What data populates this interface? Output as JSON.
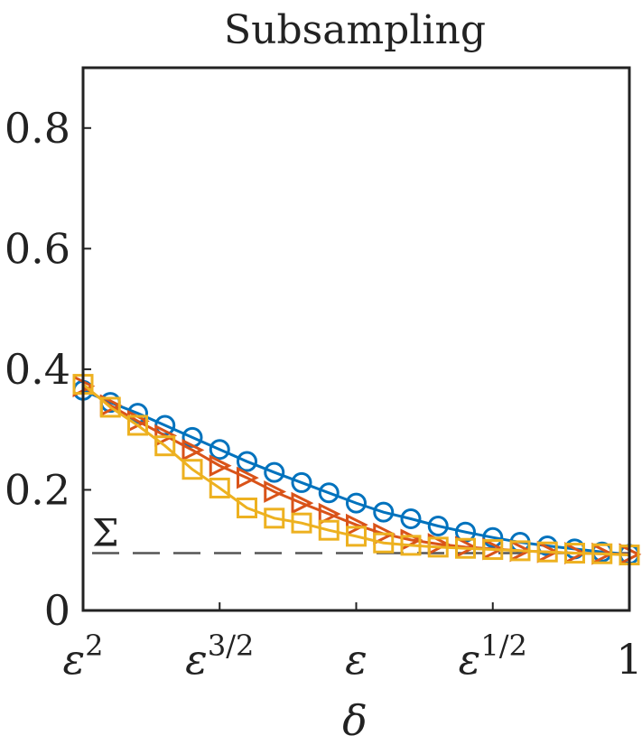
{
  "chart_data": {
    "type": "line",
    "title": "Subsampling",
    "xlabel": "δ",
    "ylabel": "",
    "ylim": [
      0,
      0.9
    ],
    "yticks": [
      0,
      0.2,
      0.4,
      0.6,
      0.8
    ],
    "ytick_labels": [
      "0",
      "0.2",
      "0.4",
      "0.6",
      "0.8"
    ],
    "xticks": [
      0,
      0.25,
      0.5,
      0.75,
      1
    ],
    "xtick_labels": [
      {
        "base": "ε",
        "sup": "2"
      },
      {
        "base": "ε",
        "sup": "3/2"
      },
      {
        "base": "ε",
        "sup": ""
      },
      {
        "base": "ε",
        "sup": "1/2"
      },
      {
        "base": "1",
        "sup": ""
      }
    ],
    "x_scale_note": "log-scaled: position t maps to δ = ε^(2·(1−t))",
    "grid": false,
    "reference_line": {
      "label": "Σ",
      "value": 0.095,
      "style": "dashed",
      "color": "#555555"
    },
    "x": [
      0,
      0.05,
      0.1,
      0.15,
      0.2,
      0.25,
      0.3,
      0.35,
      0.4,
      0.45,
      0.5,
      0.55,
      0.6,
      0.65,
      0.7,
      0.75,
      0.8,
      0.85,
      0.9,
      0.95,
      1.0
    ],
    "series": [
      {
        "color": "#0072BD",
        "marker": "circle",
        "values": [
          0.365,
          0.345,
          0.327,
          0.307,
          0.287,
          0.267,
          0.247,
          0.229,
          0.212,
          0.195,
          0.178,
          0.163,
          0.152,
          0.14,
          0.13,
          0.121,
          0.113,
          0.107,
          0.102,
          0.097,
          0.093
        ]
      },
      {
        "color": "#D95319",
        "marker": "triangle-right",
        "values": [
          0.372,
          0.34,
          0.314,
          0.29,
          0.266,
          0.24,
          0.22,
          0.197,
          0.178,
          0.16,
          0.142,
          0.127,
          0.117,
          0.11,
          0.105,
          0.102,
          0.099,
          0.097,
          0.095,
          0.094,
          0.093
        ]
      },
      {
        "color": "#EDB120",
        "marker": "square",
        "values": [
          0.375,
          0.337,
          0.307,
          0.273,
          0.234,
          0.203,
          0.17,
          0.153,
          0.145,
          0.133,
          0.123,
          0.112,
          0.108,
          0.105,
          0.103,
          0.101,
          0.099,
          0.097,
          0.095,
          0.094,
          0.092
        ]
      }
    ]
  }
}
